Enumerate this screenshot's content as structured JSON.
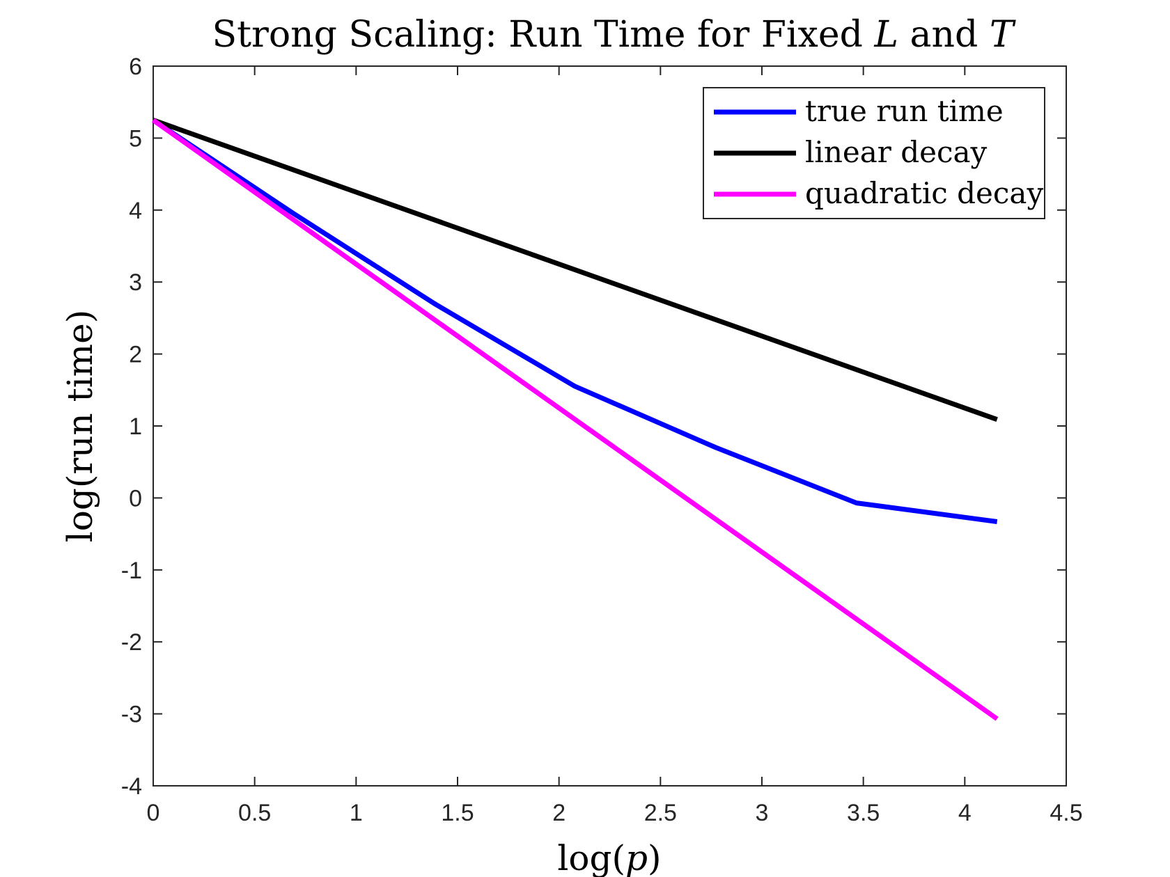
{
  "chart_data": {
    "type": "line",
    "title": "Strong Scaling: Run Time for Fixed L and T",
    "title_parts": {
      "prefix": "Strong Scaling: Run Time for Fixed ",
      "var1": "L",
      "mid": " and ",
      "var2": "T"
    },
    "xlabel": "log(p)",
    "xlabel_parts": {
      "prefix": "log(",
      "var": "p",
      "suffix": ")"
    },
    "ylabel": "log(run time)",
    "xlim": [
      0,
      4.5
    ],
    "ylim": [
      -4,
      6
    ],
    "xticks": [
      0,
      0.5,
      1,
      1.5,
      2,
      2.5,
      3,
      3.5,
      4,
      4.5
    ],
    "xtick_labels": [
      "0",
      "0.5",
      "1",
      "1.5",
      "2",
      "2.5",
      "3",
      "3.5",
      "4",
      "4.5"
    ],
    "yticks": [
      -4,
      -3,
      -2,
      -1,
      0,
      1,
      2,
      3,
      4,
      5,
      6
    ],
    "ytick_labels": [
      "-4",
      "-3",
      "-2",
      "-1",
      "0",
      "1",
      "2",
      "3",
      "4",
      "5",
      "6"
    ],
    "grid": false,
    "legend_position": "top-right",
    "series": [
      {
        "name": "true run time",
        "color": "#0000FF",
        "x": [
          0,
          0.693,
          1.386,
          2.079,
          2.773,
          3.466,
          4.159
        ],
        "y": [
          5.25,
          3.95,
          2.7,
          1.55,
          0.7,
          -0.07,
          -0.33
        ]
      },
      {
        "name": "linear decay",
        "color": "#000000",
        "x": [
          0,
          4.159
        ],
        "y": [
          5.25,
          1.09
        ]
      },
      {
        "name": "quadratic decay",
        "color": "#FF00FF",
        "x": [
          0,
          4.159
        ],
        "y": [
          5.25,
          -3.07
        ]
      }
    ]
  }
}
